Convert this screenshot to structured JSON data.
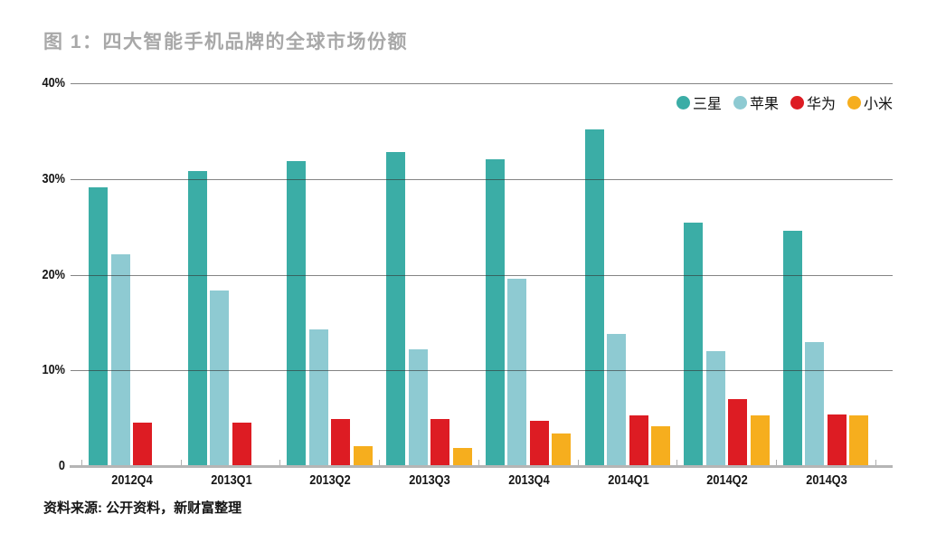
{
  "header": {
    "title": "图 1：四大智能手机品牌的全球市场份额"
  },
  "chart_data": {
    "type": "bar",
    "title": "图 1：四大智能手机品牌的全球市场份额",
    "categories": [
      "2012Q4",
      "2013Q1",
      "2013Q2",
      "2013Q3",
      "2013Q4",
      "2014Q1",
      "2014Q2",
      "2014Q3"
    ],
    "series": [
      {
        "name": "三星",
        "color": "#3bada6",
        "values": [
          29.1,
          30.8,
          31.9,
          32.8,
          32.1,
          35.2,
          25.4,
          24.6
        ]
      },
      {
        "name": "苹果",
        "color": "#8ecad2",
        "values": [
          22.1,
          18.3,
          14.3,
          12.2,
          19.6,
          13.8,
          12.0,
          13.0
        ]
      },
      {
        "name": "华为",
        "color": "#dd1c23",
        "values": [
          4.5,
          4.5,
          4.9,
          4.9,
          4.7,
          5.3,
          7.0,
          5.4
        ]
      },
      {
        "name": "小米",
        "color": "#f6ae1e",
        "values": [
          null,
          null,
          2.1,
          1.9,
          3.4,
          4.2,
          5.3,
          5.3
        ]
      }
    ],
    "xlabel": "",
    "ylabel": "",
    "ylim": [
      0,
      40
    ],
    "y_tick_labels": [
      "40%",
      "30%",
      "20%",
      "10%",
      "0"
    ],
    "grid": true,
    "legend_position": "top-right"
  },
  "footer": {
    "source": "资料来源: 公开资料，新财富整理"
  }
}
